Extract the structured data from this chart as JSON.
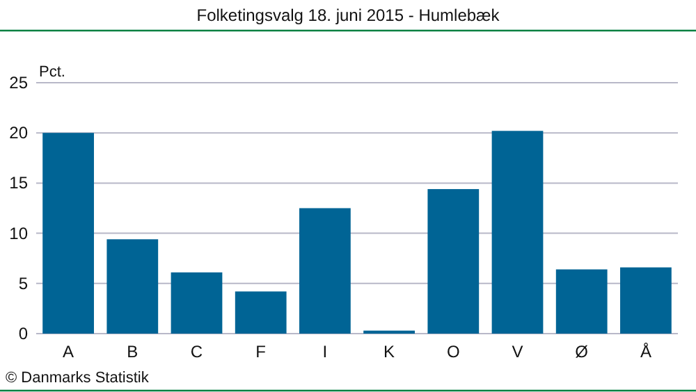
{
  "chart_data": {
    "type": "bar",
    "title": "Folketingsvalg 18. juni 2015 - Humlebæk",
    "ylabel": "Pct.",
    "categories": [
      "A",
      "B",
      "C",
      "F",
      "I",
      "K",
      "O",
      "V",
      "Ø",
      "Å"
    ],
    "values": [
      20.0,
      9.4,
      6.1,
      4.2,
      12.5,
      0.3,
      14.4,
      20.2,
      6.4,
      6.6
    ],
    "color": "#006495",
    "ylim": [
      0,
      25
    ],
    "yticks": [
      0,
      5,
      10,
      15,
      20,
      25
    ],
    "grid": "y",
    "annotations": [
      "© Danmarks Statistik"
    ]
  }
}
